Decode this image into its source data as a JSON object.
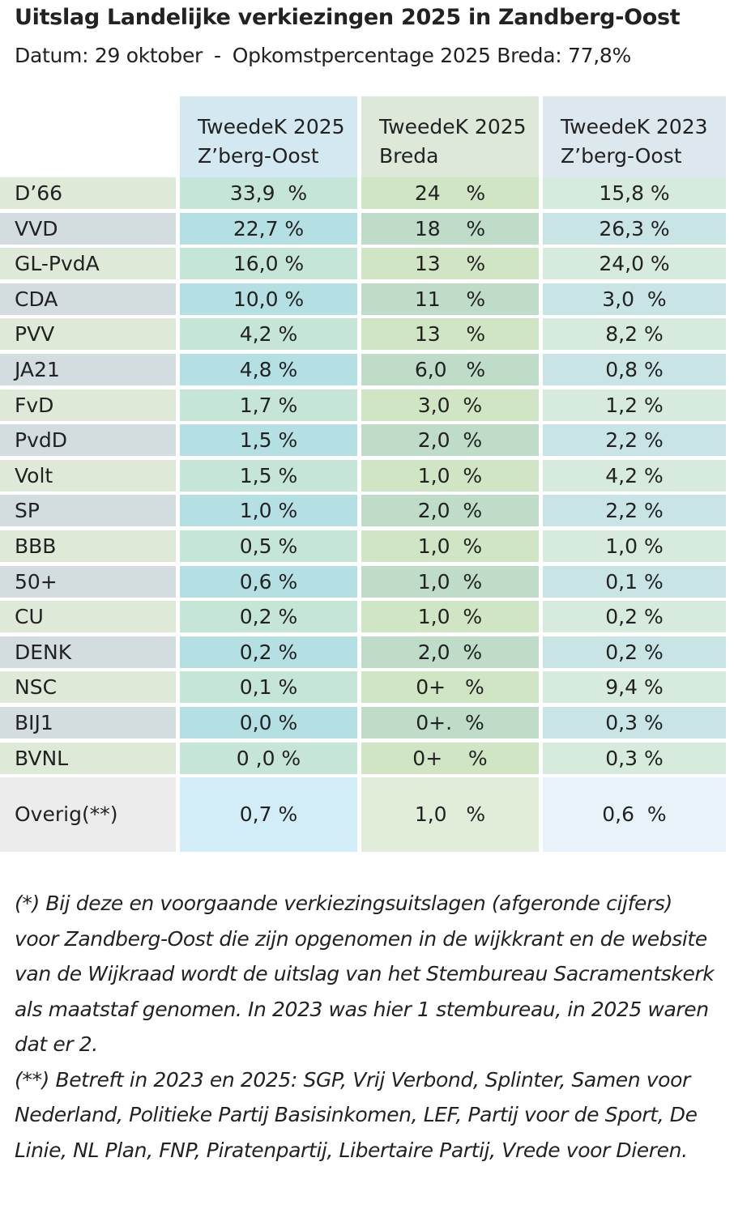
{
  "header": {
    "title": "Uitslag Landelijke verkiezingen 2025 in Zandberg-Oost",
    "date": "Datum: 29 oktober",
    "separator": "-",
    "turnout": "Opkomstpercentage 2025 Breda: 77,8%"
  },
  "table": {
    "columns": [
      {
        "line1": "TweedeK 2025",
        "line2": "Z’berg-Oost"
      },
      {
        "line1": "TweedeK 2025",
        "line2": "Breda"
      },
      {
        "line1": "TweedeK 2023",
        "line2": "Z’berg-Oost"
      }
    ],
    "rows": [
      {
        "party": "D’66",
        "zo2025": "33,9  %",
        "breda2025": "24    %",
        "zo2023": "15,8 %"
      },
      {
        "party": "VVD",
        "zo2025": "22,7 %",
        "breda2025": "18    %",
        "zo2023": "26,3 %"
      },
      {
        "party": "GL-PvdA",
        "zo2025": "16,0 %",
        "breda2025": "13    %",
        "zo2023": "24,0 %"
      },
      {
        "party": "CDA",
        "zo2025": "10,0 %",
        "breda2025": "11    %",
        "zo2023": "3,0  %"
      },
      {
        "party": "PVV",
        "zo2025": "4,2 %",
        "breda2025": "13    %",
        "zo2023": "8,2 %"
      },
      {
        "party": "JA21",
        "zo2025": "4,8 %",
        "breda2025": "6,0   %",
        "zo2023": "0,8 %"
      },
      {
        "party": "FvD",
        "zo2025": "1,7 %",
        "breda2025": "3,0  %",
        "zo2023": "1,2 %"
      },
      {
        "party": "PvdD",
        "zo2025": "1,5 %",
        "breda2025": "2,0  %",
        "zo2023": "2,2 %"
      },
      {
        "party": "Volt",
        "zo2025": "1,5 %",
        "breda2025": "1,0  %",
        "zo2023": "4,2 %"
      },
      {
        "party": "SP",
        "zo2025": "1,0 %",
        "breda2025": "2,0  %",
        "zo2023": "2,2 %"
      },
      {
        "party": "BBB",
        "zo2025": "0,5 %",
        "breda2025": "1,0  %",
        "zo2023": "1,0 %"
      },
      {
        "party": "50+",
        "zo2025": "0,6 %",
        "breda2025": "1,0  %",
        "zo2023": "0,1 %"
      },
      {
        "party": "CU",
        "zo2025": "0,2 %",
        "breda2025": "1,0  %",
        "zo2023": "0,2 %"
      },
      {
        "party": "DENK",
        "zo2025": "0,2 %",
        "breda2025": "2,0  %",
        "zo2023": "0,2 %"
      },
      {
        "party": "NSC",
        "zo2025": "0,1 %",
        "breda2025": "0+   %",
        "zo2023": "9,4 %"
      },
      {
        "party": "BIJ1",
        "zo2025": "0,0 %",
        "breda2025": "0+.  %",
        "zo2023": "0,3 %"
      },
      {
        "party": "BVNL",
        "zo2025": "0 ,0 %",
        "breda2025": "0+    %",
        "zo2023": "0,3 %"
      }
    ],
    "other": {
      "party": "Overig(**)",
      "zo2025": "0,7 %",
      "breda2025": "1,0   %",
      "zo2023": "0,6  %"
    }
  },
  "notes": {
    "note1": "(*) Bij deze en voorgaande verkiezingsuitslagen (afgeronde cijfers) voor Zandberg-Oost die zijn opgenomen in de wijkkrant en de website van de Wijkraad wordt de uitslag van het Stembureau Sacramentskerk als maatstaf genomen. In 2023 was hier 1 stembureau, in 2025 waren dat er 2.",
    "note2": "(**) Betreft in 2023 en 2025: SGP, Vrij Verbond, Splinter, Samen voor Nederland, Politieke Partij Basisinkomen, LEF, Partij voor de Sport, De Linie, NL Plan, FNP, Piratenpartij, Libertaire Partij, Vrede voor Dieren."
  }
}
